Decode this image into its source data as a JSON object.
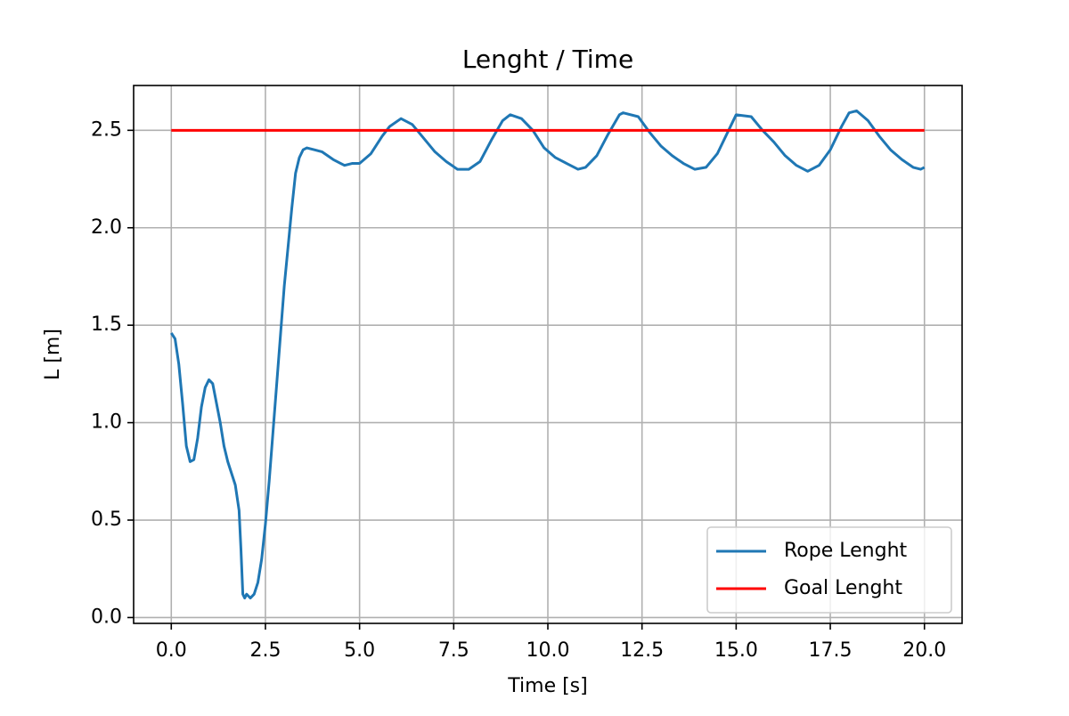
{
  "chart_data": {
    "type": "line",
    "title": "Lenght / Time",
    "x_label": "Time [s]",
    "y_label": "L [m]",
    "xlim": [
      -1.0,
      21.0
    ],
    "ylim": [
      -0.03,
      2.73
    ],
    "xticks": [
      {
        "value": 0,
        "label": "0.0"
      },
      {
        "value": 2.5,
        "label": "2.5"
      },
      {
        "value": 5,
        "label": "5.0"
      },
      {
        "value": 7.5,
        "label": "7.5"
      },
      {
        "value": 10,
        "label": "10.0"
      },
      {
        "value": 12.5,
        "label": "12.5"
      },
      {
        "value": 15,
        "label": "15.0"
      },
      {
        "value": 17.5,
        "label": "17.5"
      },
      {
        "value": 20,
        "label": "20.0"
      }
    ],
    "yticks": [
      {
        "value": 0,
        "label": "0.0"
      },
      {
        "value": 0.5,
        "label": "0.5"
      },
      {
        "value": 1,
        "label": "1.0"
      },
      {
        "value": 1.5,
        "label": "1.5"
      },
      {
        "value": 2,
        "label": "2.0"
      },
      {
        "value": 2.5,
        "label": "2.5"
      }
    ],
    "grid": true,
    "legend": "lower right",
    "series": [
      {
        "name": "Rope Lenght",
        "color": "#1f77b4",
        "x": [
          0,
          0.1,
          0.2,
          0.3,
          0.4,
          0.5,
          0.6,
          0.7,
          0.8,
          0.9,
          1.0,
          1.1,
          1.2,
          1.3,
          1.4,
          1.5,
          1.6,
          1.7,
          1.8,
          1.85,
          1.9,
          1.95,
          2.0,
          2.05,
          2.1,
          2.2,
          2.3,
          2.4,
          2.5,
          2.6,
          2.7,
          2.8,
          2.9,
          3.0,
          3.1,
          3.2,
          3.3,
          3.4,
          3.5,
          3.6,
          3.8,
          4.0,
          4.3,
          4.6,
          4.8,
          5.0,
          5.3,
          5.6,
          5.8,
          6.1,
          6.4,
          6.7,
          7.0,
          7.3,
          7.6,
          7.9,
          8.2,
          8.5,
          8.8,
          9.0,
          9.3,
          9.6,
          9.9,
          10.2,
          10.5,
          10.8,
          11.0,
          11.3,
          11.6,
          11.9,
          12.0,
          12.4,
          12.7,
          13.0,
          13.3,
          13.6,
          13.9,
          14.2,
          14.5,
          14.8,
          15.0,
          15.4,
          15.7,
          16.0,
          16.3,
          16.6,
          16.9,
          17.2,
          17.5,
          17.8,
          18.0,
          18.2,
          18.5,
          18.8,
          19.1,
          19.4,
          19.7,
          19.9,
          20.0
        ],
        "values": [
          1.46,
          1.43,
          1.3,
          1.1,
          0.88,
          0.8,
          0.81,
          0.92,
          1.08,
          1.18,
          1.22,
          1.2,
          1.1,
          1.0,
          0.88,
          0.8,
          0.74,
          0.68,
          0.55,
          0.35,
          0.12,
          0.1,
          0.12,
          0.11,
          0.1,
          0.12,
          0.18,
          0.3,
          0.48,
          0.7,
          0.95,
          1.2,
          1.45,
          1.7,
          1.9,
          2.1,
          2.28,
          2.36,
          2.4,
          2.41,
          2.4,
          2.39,
          2.35,
          2.32,
          2.33,
          2.33,
          2.38,
          2.47,
          2.52,
          2.56,
          2.53,
          2.46,
          2.39,
          2.34,
          2.3,
          2.3,
          2.34,
          2.45,
          2.55,
          2.58,
          2.56,
          2.5,
          2.41,
          2.36,
          2.33,
          2.3,
          2.31,
          2.37,
          2.48,
          2.58,
          2.59,
          2.57,
          2.49,
          2.42,
          2.37,
          2.33,
          2.3,
          2.31,
          2.38,
          2.5,
          2.58,
          2.57,
          2.5,
          2.44,
          2.37,
          2.32,
          2.29,
          2.32,
          2.4,
          2.52,
          2.59,
          2.6,
          2.55,
          2.47,
          2.4,
          2.35,
          2.31,
          2.3,
          2.31
        ]
      },
      {
        "name": "Goal Lenght",
        "color": "#ff0000",
        "x": [
          0,
          20
        ],
        "values": [
          2.5,
          2.5
        ]
      }
    ]
  }
}
